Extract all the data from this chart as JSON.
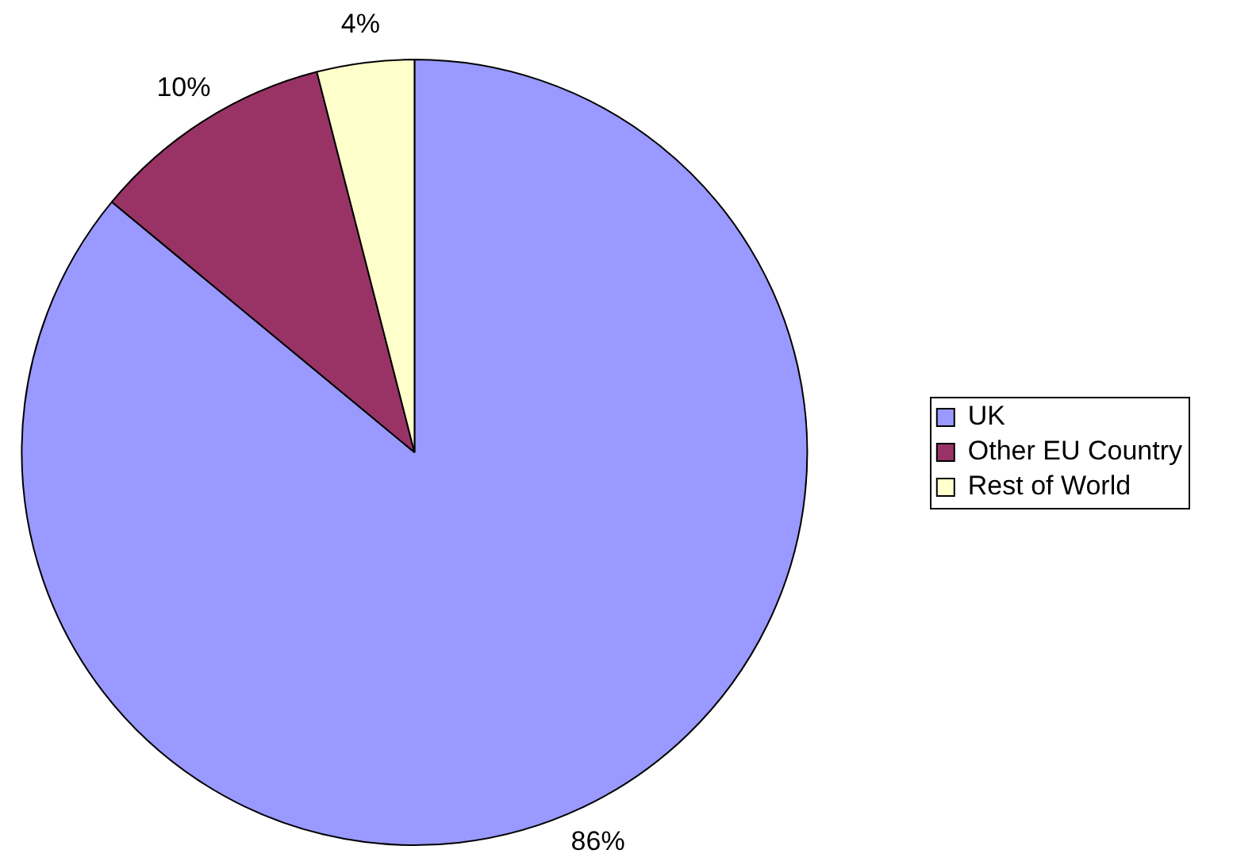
{
  "chart_data": {
    "type": "pie",
    "categories": [
      "UK",
      "Other EU Country",
      "Rest of World"
    ],
    "values": [
      86,
      10,
      4
    ],
    "colors": [
      "#9999ff",
      "#993366",
      "#ffffcc"
    ],
    "value_labels": [
      "86%",
      "10%",
      "4%"
    ],
    "legend": "right"
  }
}
